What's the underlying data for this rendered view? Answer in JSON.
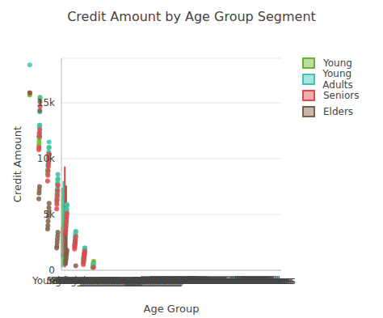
{
  "chart_data": {
    "type": "box",
    "title": "Credit Amount by Age Group Segment",
    "x_label": "Age Group",
    "y_label": "Credit Amount",
    "categories": [
      "Young",
      "Young Adults",
      "Seniors",
      "Elders"
    ],
    "ylim": [
      0,
      19000
    ],
    "yticks": [
      0,
      {
        "value": 5000,
        "label": "5k"
      },
      {
        "value": 10000,
        "label": "10k"
      },
      {
        "value": 15000,
        "label": "15k"
      }
    ],
    "grid": true,
    "legend": "upper right",
    "series": [
      {
        "name": "Young",
        "color": "#6ab42d",
        "min": 250,
        "q1": 1250,
        "median": 2200,
        "q3": 3800,
        "max": 7400,
        "points": [
          15700,
          15500,
          13000,
          12000,
          11800,
          11500,
          11200,
          11000,
          10500,
          10000,
          9800,
          9500,
          9000,
          8700,
          8200,
          7800,
          7300,
          6900,
          6500,
          6100,
          5800,
          5400,
          5000,
          4700,
          4300,
          4000,
          3700,
          3400,
          3100,
          2900,
          2600,
          2400,
          2200,
          2000,
          1800,
          1600,
          1400,
          1250,
          1100,
          950,
          800,
          650,
          500,
          350,
          250
        ]
      },
      {
        "name": "Young Adults",
        "color": "#3ec4b4",
        "min": 350,
        "q1": 1500,
        "median": 2400,
        "q3": 4100,
        "max": 8000,
        "points": [
          18400,
          15400,
          14200,
          13000,
          12800,
          12300,
          12000,
          11500,
          11000,
          10600,
          10200,
          9900,
          9400,
          9000,
          8600,
          8100,
          7700,
          7200,
          6800,
          6300,
          5900,
          5500,
          5100,
          4800,
          4400,
          4100,
          3800,
          3500,
          3200,
          2900,
          2700,
          2400,
          2200,
          2000,
          1800,
          1500,
          1300,
          1100,
          900,
          700,
          500,
          350
        ]
      },
      {
        "name": "Seniors",
        "color": "#e0474c",
        "min": 250,
        "q1": 1300,
        "median": 2350,
        "q3": 4500,
        "max": 9300,
        "points": [
          15900,
          14700,
          12600,
          12300,
          12000,
          11000,
          10800,
          10400,
          10000,
          9600,
          9300,
          8900,
          8500,
          8000,
          7600,
          7100,
          6700,
          6300,
          5900,
          5500,
          5100,
          4800,
          4500,
          4200,
          3900,
          3600,
          3300,
          3000,
          2700,
          2500,
          2300,
          2100,
          1900,
          1700,
          1500,
          1300,
          1100,
          900,
          700,
          500,
          250
        ]
      },
      {
        "name": "Elders",
        "color": "#7e5f45",
        "min": 400,
        "q1": 1200,
        "median": 1950,
        "q3": 3900,
        "max": 7600,
        "points": [
          15900,
          15100,
          14300,
          7500,
          7200,
          6900,
          6400,
          6000,
          5600,
          5200,
          4800,
          4400,
          4000,
          3700,
          3400,
          3100,
          2800,
          2500,
          2200,
          2000,
          1800,
          1600,
          1400,
          1200,
          1000,
          800,
          600,
          400
        ]
      }
    ]
  }
}
